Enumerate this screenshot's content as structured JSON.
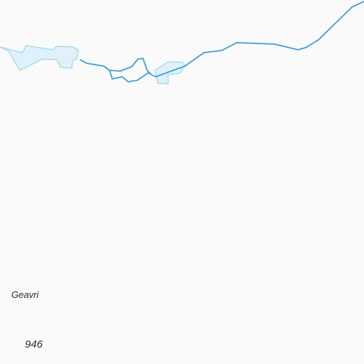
{
  "map": {
    "background_color": "#fafafa",
    "water_fill_color": "#dff1fb",
    "water_outline_color": "#90cfe9",
    "stream_color": "#3d9ddb",
    "labels": {
      "place_name": "Geavri",
      "elevation": "946"
    }
  }
}
